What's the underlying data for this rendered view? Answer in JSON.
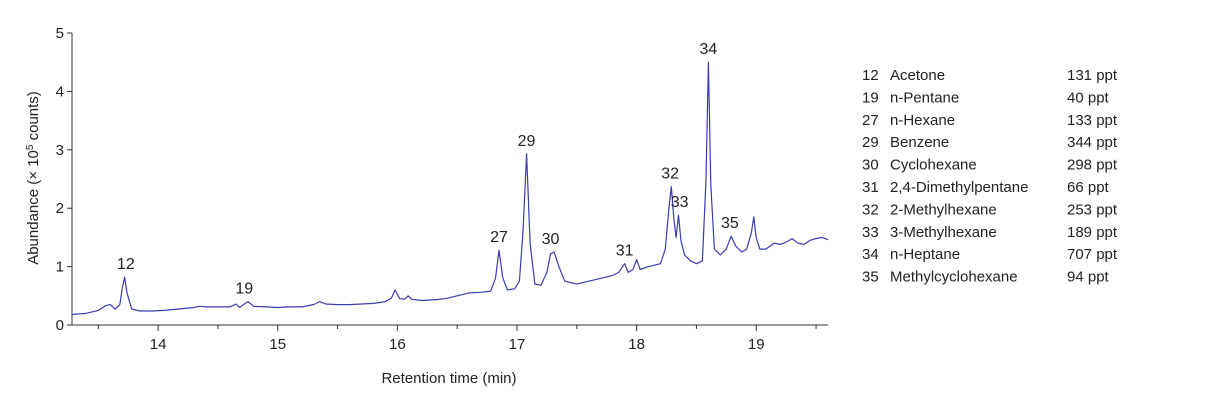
{
  "chart_data": {
    "type": "line",
    "xlabel": "Retention time (min)",
    "ylabel_main": "Abundance (× 10",
    "ylabel_sup": "5",
    "ylabel_end": " counts)",
    "xlim": [
      13.28,
      19.6
    ],
    "ylim": [
      0,
      5
    ],
    "x_ticks": [
      14,
      15,
      16,
      17,
      18,
      19
    ],
    "x_minor_ticks": [
      13.5,
      14.5,
      15.5,
      16.5,
      17.5,
      18.5,
      19.5
    ],
    "y_ticks": [
      0,
      1,
      2,
      3,
      4,
      5
    ],
    "line_color": "#3b3bb3",
    "series": [
      {
        "x": [
          13.28,
          13.4,
          13.5,
          13.56,
          13.6,
          13.64,
          13.68,
          13.7,
          13.72,
          13.74,
          13.78,
          13.85,
          13.95,
          14.05,
          14.2,
          14.3,
          14.35,
          14.4,
          14.48,
          14.6,
          14.65,
          14.68,
          14.72,
          14.75,
          14.8,
          14.9,
          15.0,
          15.1,
          15.2,
          15.3,
          15.35,
          15.4,
          15.5,
          15.6,
          15.7,
          15.8,
          15.9,
          15.95,
          15.98,
          16.02,
          16.06,
          16.09,
          16.12,
          16.2,
          16.3,
          16.4,
          16.5,
          16.6,
          16.7,
          16.78,
          16.82,
          16.85,
          16.88,
          16.92,
          16.98,
          17.02,
          17.05,
          17.08,
          17.11,
          17.15,
          17.2,
          17.25,
          17.28,
          17.31,
          17.35,
          17.4,
          17.5,
          17.6,
          17.7,
          17.8,
          17.85,
          17.9,
          17.93,
          17.97,
          18.0,
          18.03,
          18.1,
          18.2,
          18.24,
          18.27,
          18.29,
          18.31,
          18.33,
          18.35,
          18.37,
          18.4,
          18.45,
          18.5,
          18.55,
          18.58,
          18.6,
          18.62,
          18.65,
          18.7,
          18.75,
          18.79,
          18.83,
          18.88,
          18.92,
          18.96,
          18.98,
          19.0,
          19.03,
          19.08,
          19.15,
          19.2,
          19.25,
          19.3,
          19.35,
          19.4,
          19.45,
          19.5,
          19.55,
          19.6
        ],
        "y": [
          0.18,
          0.2,
          0.25,
          0.33,
          0.35,
          0.27,
          0.35,
          0.62,
          0.82,
          0.55,
          0.27,
          0.24,
          0.24,
          0.25,
          0.28,
          0.3,
          0.32,
          0.31,
          0.31,
          0.31,
          0.36,
          0.3,
          0.36,
          0.4,
          0.32,
          0.31,
          0.3,
          0.31,
          0.31,
          0.35,
          0.4,
          0.36,
          0.35,
          0.35,
          0.36,
          0.37,
          0.4,
          0.46,
          0.6,
          0.45,
          0.44,
          0.5,
          0.44,
          0.42,
          0.43,
          0.45,
          0.5,
          0.55,
          0.56,
          0.58,
          0.8,
          1.28,
          0.82,
          0.6,
          0.62,
          0.75,
          1.6,
          2.93,
          1.4,
          0.7,
          0.68,
          0.9,
          1.22,
          1.25,
          1.0,
          0.75,
          0.7,
          0.75,
          0.8,
          0.85,
          0.9,
          1.05,
          0.9,
          0.95,
          1.12,
          0.95,
          1.0,
          1.05,
          1.3,
          2.0,
          2.37,
          1.85,
          1.5,
          1.88,
          1.45,
          1.2,
          1.1,
          1.05,
          1.1,
          2.5,
          4.5,
          2.4,
          1.3,
          1.2,
          1.3,
          1.52,
          1.35,
          1.25,
          1.3,
          1.58,
          1.85,
          1.5,
          1.3,
          1.3,
          1.4,
          1.38,
          1.42,
          1.48,
          1.4,
          1.38,
          1.45,
          1.48,
          1.5,
          1.46
        ]
      }
    ],
    "peak_labels": [
      {
        "text": "12",
        "x": 13.73,
        "y": 0.82
      },
      {
        "text": "19",
        "x": 14.72,
        "y": 0.4
      },
      {
        "text": "27",
        "x": 16.85,
        "y": 1.28
      },
      {
        "text": "29",
        "x": 17.08,
        "y": 2.93
      },
      {
        "text": "30",
        "x": 17.28,
        "y": 1.25
      },
      {
        "text": "31",
        "x": 17.9,
        "y": 1.05
      },
      {
        "text": "32",
        "x": 18.28,
        "y": 2.37
      },
      {
        "text": "33",
        "x": 18.36,
        "y": 1.88
      },
      {
        "text": "34",
        "x": 18.6,
        "y": 4.5
      },
      {
        "text": "35",
        "x": 18.78,
        "y": 1.52
      }
    ],
    "legend": [
      {
        "id": "12",
        "name": "Acetone",
        "amount": "131 ppt"
      },
      {
        "id": "19",
        "name": "n-Pentane",
        "amount": "40 ppt"
      },
      {
        "id": "27",
        "name": "n-Hexane",
        "amount": "133 ppt"
      },
      {
        "id": "29",
        "name": "Benzene",
        "amount": "344 ppt"
      },
      {
        "id": "30",
        "name": "Cyclohexane",
        "amount": "298 ppt"
      },
      {
        "id": "31",
        "name": "2,4-Dimethylpentane",
        "amount": "66 ppt"
      },
      {
        "id": "32",
        "name": "2-Methylhexane",
        "amount": "253 ppt"
      },
      {
        "id": "33",
        "name": "3-Methylhexane",
        "amount": "189 ppt"
      },
      {
        "id": "34",
        "name": "n-Heptane",
        "amount": "707 ppt"
      },
      {
        "id": "35",
        "name": "Methylcyclohexane",
        "amount": "94 ppt"
      }
    ]
  }
}
